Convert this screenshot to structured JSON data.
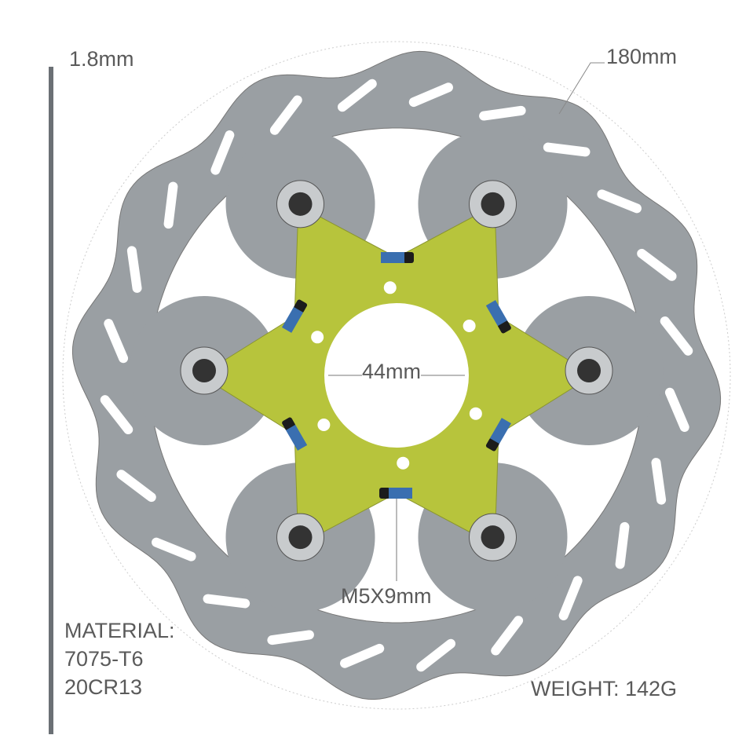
{
  "annotations": {
    "thickness": "1.8mm",
    "diameter": "180mm",
    "center_bore": "44mm",
    "bolt_size": "M5X9mm",
    "material_label": "MATERIAL:",
    "material_1": "7075-T6",
    "material_2": "20CR13",
    "weight": "WEIGHT: 142G"
  },
  "colors": {
    "rotor": "#9a9fa3",
    "carrier": "#b7c43c",
    "bolt": "#1c1c1c",
    "thread": "#3a6fb0"
  }
}
